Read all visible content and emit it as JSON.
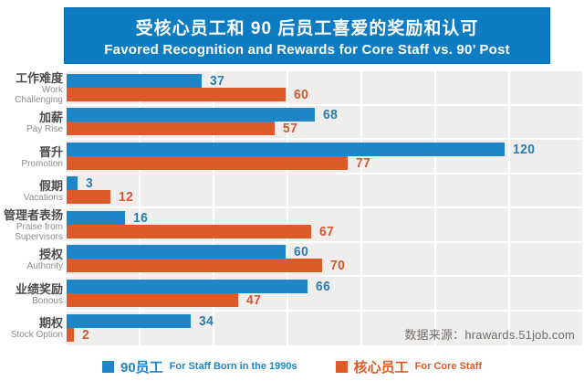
{
  "title": {
    "zh": "受核心员工和 90 后员工喜爱的奖励和认可",
    "en": "Favored  Recognition and Rewards for  Core Staff  vs. 90’ Post"
  },
  "source_text": "数据来源：hrawards.51job.com",
  "legend": {
    "series_90s": {
      "label_zh": "90员工",
      "label_en": "For Staff Born in the 1990s",
      "color": "#1e86c7"
    },
    "series_core": {
      "label_zh": "核心员工",
      "label_en": "For Core Staff",
      "color": "#e05a28"
    }
  },
  "colors": {
    "title_bg": "#0e7cc2",
    "bar_blue": "#1e86c7",
    "bar_orange": "#dc5b28",
    "plot_bg": "#f0eeec",
    "gridline": "#ffffff",
    "value_blue": "#2a7cb0",
    "value_orange": "#d4562a",
    "label_zh": "#4c4c4c",
    "label_en": "#8c8c8c"
  },
  "chart_data": {
    "type": "bar",
    "orientation": "horizontal",
    "title": "受核心员工和 90 后员工喜爱的奖励和认可 / Favored Recognition and Rewards for Core Staff vs. 90' Post",
    "categories": [
      {
        "zh": "工作难度",
        "en": "Work Challenging"
      },
      {
        "zh": "加薪",
        "en": "Pay Rise"
      },
      {
        "zh": "晋升",
        "en": "Promotion"
      },
      {
        "zh": "假期",
        "en": "Vacations"
      },
      {
        "zh": "管理者表扬",
        "en": "Praise from Supervisors"
      },
      {
        "zh": "授权",
        "en": "Authority"
      },
      {
        "zh": "业绩奖励",
        "en": "Bonous"
      },
      {
        "zh": "期权",
        "en": "Stock Option"
      }
    ],
    "series": [
      {
        "name": "90员工 For Staff Born in the 1990s",
        "color": "#1e86c7",
        "values": [
          37,
          68,
          120,
          3,
          16,
          60,
          66,
          34
        ]
      },
      {
        "name": "核心员工 For Core Staff",
        "color": "#dc5b28",
        "values": [
          60,
          57,
          77,
          12,
          67,
          70,
          47,
          2
        ]
      }
    ],
    "xlim": [
      0,
      140
    ],
    "grid": "vertical, every 20 units, white lines",
    "legend_position": "bottom",
    "value_labels": "shown at end of each bar"
  }
}
